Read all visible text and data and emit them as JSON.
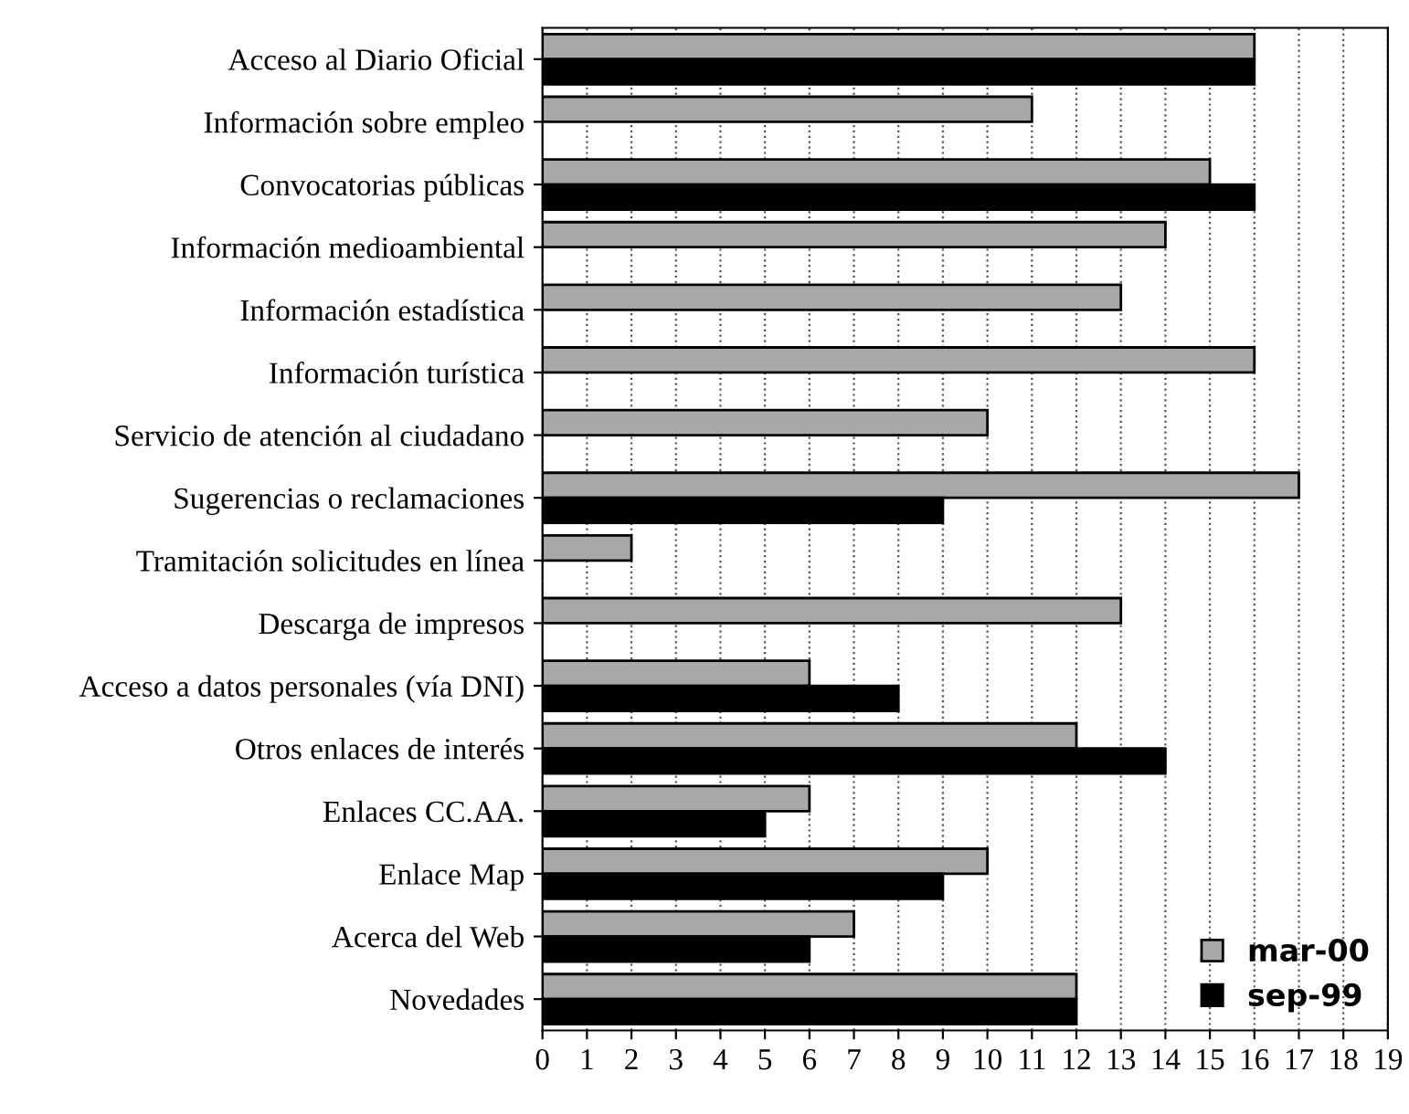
{
  "chart_data": {
    "type": "bar",
    "orientation": "horizontal",
    "categories": [
      "Acceso al Diario Oficial",
      "Información sobre empleo",
      "Convocatorias públicas",
      "Información medioambiental",
      "Información estadística",
      "Información turística",
      "Servicio de atención al ciudadano",
      "Sugerencias o reclamaciones",
      "Tramitación solicitudes en línea",
      "Descarga de impresos",
      "Acceso a datos personales (vía DNI)",
      "Otros enlaces de interés",
      "Enlaces CC.AA.",
      "Enlace Map",
      "Acerca del Web",
      "Novedades"
    ],
    "series": [
      {
        "name": "mar-00",
        "color": "#a8a8a8",
        "values": [
          16,
          11,
          15,
          14,
          13,
          16,
          10,
          17,
          2,
          13,
          6,
          12,
          6,
          10,
          7,
          12
        ]
      },
      {
        "name": "sep-99",
        "color": "#000000",
        "values": [
          16,
          null,
          16,
          null,
          null,
          null,
          null,
          9,
          null,
          null,
          8,
          14,
          5,
          9,
          6,
          12
        ]
      }
    ],
    "xlim": [
      0,
      19
    ],
    "xticks": [
      0,
      1,
      2,
      3,
      4,
      5,
      6,
      7,
      8,
      9,
      10,
      11,
      12,
      13,
      14,
      15,
      16,
      17,
      18,
      19
    ],
    "grid": "x",
    "legend": "bottom right"
  }
}
